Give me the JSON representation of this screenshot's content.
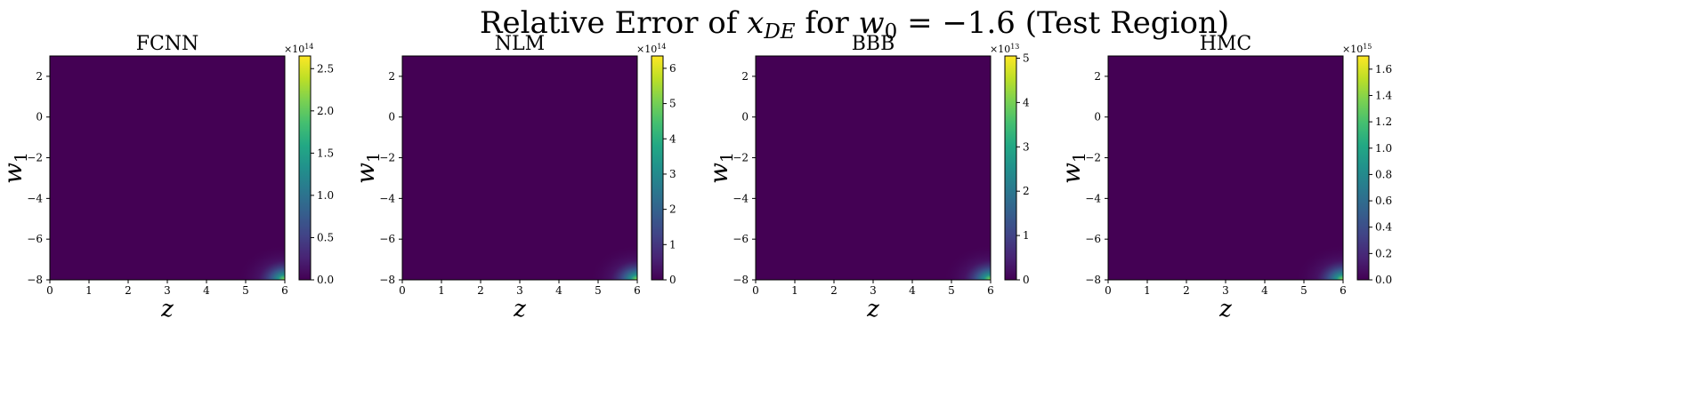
{
  "figure": {
    "title_prefix": "Relative Error of ",
    "title_var": "x",
    "title_var_sub": "DE",
    "title_mid": " for ",
    "title_param": "w",
    "title_param_sub": "0",
    "title_value": " = −1.6",
    "title_suffix": " (Test Region)"
  },
  "chart_data": [
    {
      "type": "heatmap",
      "title": "FCNN",
      "xlabel": "z",
      "ylabel_var": "w",
      "ylabel_sub": "1",
      "xlim": [
        0,
        6
      ],
      "ylim": [
        -8,
        3
      ],
      "xticks": [
        0,
        1,
        2,
        3,
        4,
        5,
        6
      ],
      "yticks": [
        -8,
        -6,
        -4,
        -2,
        0,
        2
      ],
      "colormap": "viridis",
      "colorbar_exponent": "14",
      "colorbar_range": [
        0,
        2.65
      ],
      "colorbar_ticks": [
        "0.0",
        "0.5",
        "1.0",
        "1.5",
        "2.0",
        "2.5"
      ],
      "colorbar_tick_values": [
        0,
        0.5,
        1.0,
        1.5,
        2.0,
        2.5
      ],
      "hotspot": "bottom-right"
    },
    {
      "type": "heatmap",
      "title": "NLM",
      "xlabel": "z",
      "ylabel_var": "w",
      "ylabel_sub": "1",
      "xlim": [
        0,
        6
      ],
      "ylim": [
        -8,
        3
      ],
      "xticks": [
        0,
        1,
        2,
        3,
        4,
        5,
        6
      ],
      "yticks": [
        -8,
        -6,
        -4,
        -2,
        0,
        2
      ],
      "colormap": "viridis",
      "colorbar_exponent": "14",
      "colorbar_range": [
        0,
        6.35
      ],
      "colorbar_ticks": [
        "0",
        "1",
        "2",
        "3",
        "4",
        "5",
        "6"
      ],
      "colorbar_tick_values": [
        0,
        1,
        2,
        3,
        4,
        5,
        6
      ],
      "hotspot": "bottom-right"
    },
    {
      "type": "heatmap",
      "title": "BBB",
      "xlabel": "z",
      "ylabel_var": "w",
      "ylabel_sub": "1",
      "xlim": [
        0,
        6
      ],
      "ylim": [
        -8,
        3
      ],
      "xticks": [
        0,
        1,
        2,
        3,
        4,
        5,
        6
      ],
      "yticks": [
        -8,
        -6,
        -4,
        -2,
        0,
        2
      ],
      "colormap": "viridis",
      "colorbar_exponent": "13",
      "colorbar_range": [
        0,
        5.05
      ],
      "colorbar_ticks": [
        "0",
        "1",
        "2",
        "3",
        "4",
        "5"
      ],
      "colorbar_tick_values": [
        0,
        1,
        2,
        3,
        4,
        5
      ],
      "hotspot": "bottom-right"
    },
    {
      "type": "heatmap",
      "title": "HMC",
      "xlabel": "z",
      "ylabel_var": "w",
      "ylabel_sub": "1",
      "xlim": [
        0,
        6
      ],
      "ylim": [
        -8,
        3
      ],
      "xticks": [
        0,
        1,
        2,
        3,
        4,
        5,
        6
      ],
      "yticks": [
        -8,
        -6,
        -4,
        -2,
        0,
        2
      ],
      "colormap": "viridis",
      "colorbar_exponent": "15",
      "colorbar_range": [
        0,
        1.7
      ],
      "colorbar_ticks": [
        "0.0",
        "0.2",
        "0.4",
        "0.6",
        "0.8",
        "1.0",
        "1.2",
        "1.4",
        "1.6"
      ],
      "colorbar_tick_values": [
        0,
        0.2,
        0.4,
        0.6,
        0.8,
        1.0,
        1.2,
        1.4,
        1.6
      ],
      "hotspot": "bottom-right"
    }
  ],
  "colors": {
    "viridis_low": "#440154",
    "viridis_high": "#fde725",
    "axis": "#000000"
  }
}
